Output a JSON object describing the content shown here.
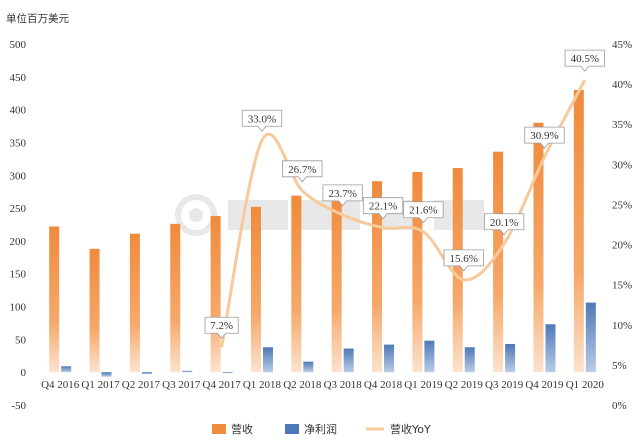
{
  "chart_data": {
    "type": "bar",
    "unit_label": "单位百万美元",
    "categories": [
      "Q4 2016",
      "Q1 2017",
      "Q2 2017",
      "Q3 2017",
      "Q4 2017",
      "Q1 2018",
      "Q2 2018",
      "Q3 2018",
      "Q4 2018",
      "Q1 2019",
      "Q2 2019",
      "Q3 2019",
      "Q4 2019",
      "Q1 2020"
    ],
    "series": [
      {
        "name": "营收",
        "kind": "bar",
        "axis": "left",
        "color": "#F08A3C",
        "values": [
          222,
          188,
          211,
          226,
          238,
          252,
          269,
          279,
          291,
          305,
          311,
          336,
          380,
          430
        ]
      },
      {
        "name": "净利润",
        "kind": "bar",
        "axis": "left",
        "color": "#4E79B8",
        "values": [
          9,
          -7,
          -3,
          2,
          -1,
          38,
          16,
          36,
          42,
          48,
          38,
          43,
          73,
          106
        ]
      },
      {
        "name": "营收YoY",
        "kind": "line",
        "axis": "right",
        "color": "#F8C99A",
        "values": [
          null,
          null,
          null,
          null,
          7.2,
          33.0,
          26.7,
          23.7,
          22.1,
          21.6,
          15.6,
          20.1,
          30.9,
          40.5
        ],
        "labels": [
          null,
          null,
          null,
          null,
          "7.2%",
          "33.0%",
          "26.7%",
          "23.7%",
          "22.1%",
          "21.6%",
          "15.6%",
          "20.1%",
          "30.9%",
          "40.5%"
        ]
      }
    ],
    "y_left": {
      "min": -50,
      "max": 500,
      "step": 50,
      "ticks": [
        "-50",
        "0",
        "50",
        "100",
        "150",
        "200",
        "250",
        "300",
        "350",
        "400",
        "450",
        "500"
      ]
    },
    "y_right": {
      "min": 0,
      "max": 45,
      "step": 5,
      "ticks": [
        "0%",
        "5%",
        "10%",
        "15%",
        "20%",
        "25%",
        "30%",
        "35%",
        "40%",
        "45%"
      ]
    },
    "legend_position": "bottom-center",
    "grid": false
  }
}
